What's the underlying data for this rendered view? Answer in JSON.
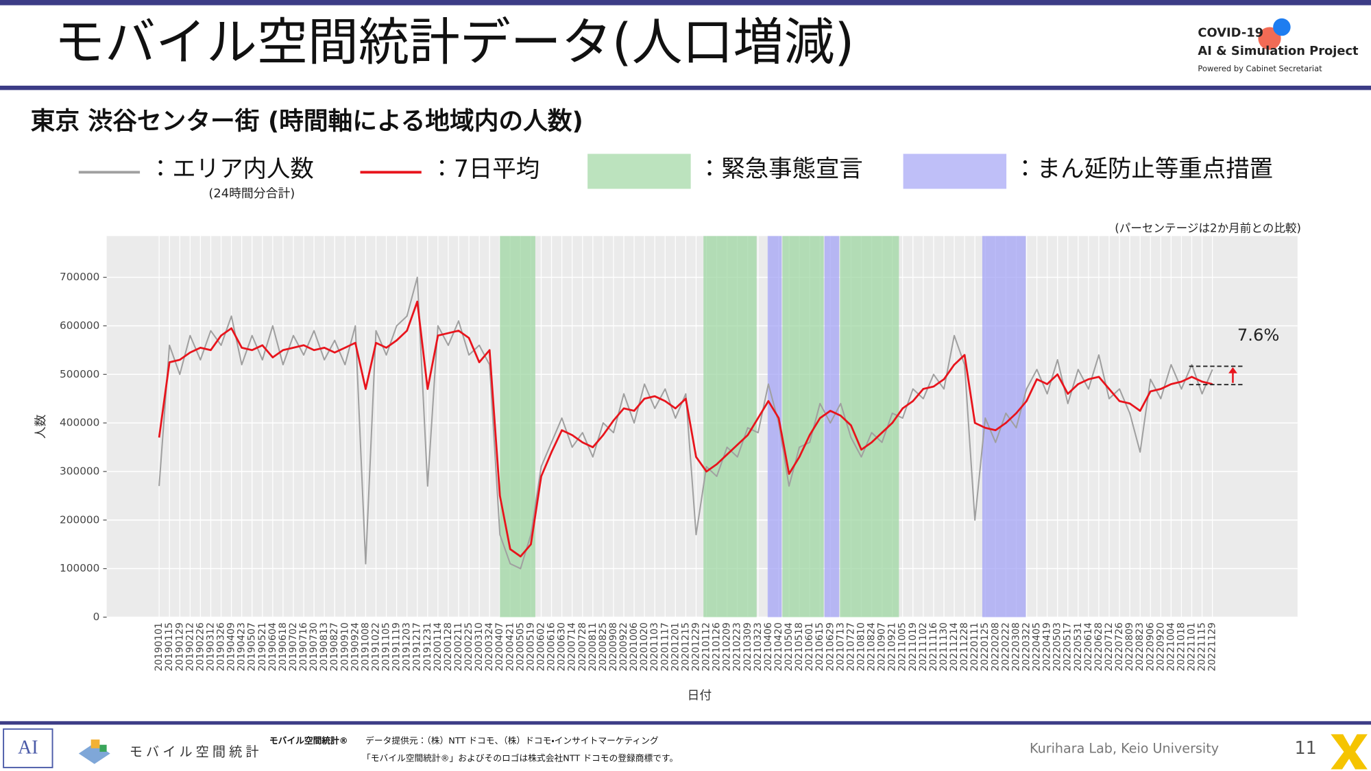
{
  "header": {
    "title": "モバイル空間統計データ(人口増減)",
    "logo_line1": "COVID-19",
    "logo_line2": "AI & Simulation Project",
    "logo_line3": "Powered by Cabinet Secretariat"
  },
  "chart_data": {
    "type": "line",
    "title": "東京 渋谷センター街 (時間軸による地域内の人数)",
    "subtitle": "(パーセンテージは2か月前との比較)",
    "x_label": "日付",
    "y_label": "人数",
    "annotation": "7.6%",
    "legend_note": "(24時間分合計)",
    "grid": true,
    "categories": [
      "20190101",
      "20190115",
      "20190129",
      "20190212",
      "20190226",
      "20190312",
      "20190326",
      "20190409",
      "20190423",
      "20190507",
      "20190521",
      "20190604",
      "20190618",
      "20190702",
      "20190716",
      "20190730",
      "20190813",
      "20190827",
      "20190910",
      "20190924",
      "20191008",
      "20191022",
      "20191105",
      "20191119",
      "20191203",
      "20191217",
      "20191231",
      "20200114",
      "20200128",
      "20200211",
      "20200225",
      "20200310",
      "20200324",
      "20200407",
      "20200421",
      "20200505",
      "20200519",
      "20200602",
      "20200616",
      "20200630",
      "20200714",
      "20200728",
      "20200811",
      "20200825",
      "20200908",
      "20200922",
      "20201006",
      "20201020",
      "20201103",
      "20201117",
      "20201201",
      "20201215",
      "20201229",
      "20210112",
      "20210126",
      "20210209",
      "20210223",
      "20210309",
      "20210323",
      "20210406",
      "20210420",
      "20210504",
      "20210518",
      "20210601",
      "20210615",
      "20210629",
      "20210713",
      "20210727",
      "20210810",
      "20210824",
      "20210907",
      "20210921",
      "20211005",
      "20211019",
      "20211102",
      "20211116",
      "20211130",
      "20211214",
      "20211228",
      "20220111",
      "20220125",
      "20220208",
      "20220222",
      "20220308",
      "20220322",
      "20220405",
      "20220419",
      "20220503",
      "20220517",
      "20220531",
      "20220614",
      "20220628",
      "20220712",
      "20220726",
      "20220809",
      "20220823",
      "20220906",
      "20220920",
      "20221004",
      "20221018",
      "20221101",
      "20221115",
      "20221129"
    ],
    "series": [
      {
        "name": "：エリア内人数",
        "color": "#a0a0a0",
        "values": [
          270000,
          560000,
          500000,
          580000,
          530000,
          590000,
          560000,
          620000,
          520000,
          580000,
          530000,
          600000,
          520000,
          580000,
          540000,
          590000,
          530000,
          570000,
          520000,
          600000,
          110000,
          590000,
          540000,
          600000,
          620000,
          700000,
          270000,
          600000,
          560000,
          610000,
          540000,
          560000,
          520000,
          170000,
          110000,
          100000,
          170000,
          310000,
          360000,
          410000,
          350000,
          380000,
          330000,
          400000,
          380000,
          460000,
          400000,
          480000,
          430000,
          470000,
          410000,
          460000,
          170000,
          310000,
          290000,
          350000,
          330000,
          390000,
          380000,
          480000,
          400000,
          270000,
          350000,
          360000,
          440000,
          400000,
          440000,
          370000,
          330000,
          380000,
          360000,
          420000,
          410000,
          470000,
          450000,
          500000,
          470000,
          580000,
          520000,
          200000,
          410000,
          360000,
          420000,
          390000,
          470000,
          510000,
          460000,
          530000,
          440000,
          510000,
          470000,
          540000,
          450000,
          470000,
          420000,
          340000,
          490000,
          450000,
          520000,
          470000,
          520000,
          460000,
          510000
        ]
      },
      {
        "name": "：7日平均",
        "color": "#e8141c",
        "values": [
          370000,
          525000,
          530000,
          545000,
          555000,
          550000,
          580000,
          595000,
          555000,
          550000,
          560000,
          535000,
          550000,
          555000,
          560000,
          550000,
          555000,
          545000,
          555000,
          565000,
          470000,
          565000,
          555000,
          570000,
          590000,
          650000,
          470000,
          580000,
          585000,
          590000,
          575000,
          525000,
          550000,
          250000,
          140000,
          125000,
          150000,
          290000,
          340000,
          385000,
          375000,
          360000,
          350000,
          375000,
          405000,
          430000,
          425000,
          450000,
          455000,
          445000,
          430000,
          450000,
          330000,
          300000,
          315000,
          335000,
          355000,
          375000,
          410000,
          445000,
          410000,
          295000,
          330000,
          375000,
          410000,
          425000,
          415000,
          395000,
          345000,
          360000,
          380000,
          400000,
          430000,
          445000,
          470000,
          475000,
          490000,
          520000,
          540000,
          400000,
          390000,
          385000,
          400000,
          420000,
          445000,
          490000,
          480000,
          500000,
          460000,
          480000,
          490000,
          495000,
          470000,
          445000,
          440000,
          425000,
          465000,
          470000,
          480000,
          485000,
          495000,
          485000,
          480000
        ]
      }
    ],
    "bands": [
      {
        "name": "：緊急事態宣言",
        "color": "#9fd7a3",
        "periods": [
          [
            "20200407",
            "20200525"
          ],
          [
            "20210108",
            "20210321"
          ],
          [
            "20210425",
            "20210620"
          ],
          [
            "20210712",
            "20210930"
          ]
        ]
      },
      {
        "name": "：まん延防止等重点措置",
        "color": "#a4a4f5",
        "periods": [
          [
            "20210405",
            "20210424"
          ],
          [
            "20210621",
            "20210711"
          ],
          [
            "20220121",
            "20220321"
          ]
        ]
      }
    ],
    "ylim": [
      0,
      785000
    ],
    "yticks": [
      0,
      100000,
      200000,
      300000,
      400000,
      500000,
      600000,
      700000
    ]
  },
  "footer": {
    "brand": "モバイル空間統計",
    "brand_small": "モバイル空間統計®",
    "source": "データ提供元：（株）NTT ドコモ、（株）ドコモ・インサイトマーケティング",
    "trademark": "「モバイル空間統計®」およびそのロゴは株式会社NTT ドコモの登録商標です。",
    "lab": "Kurihara Lab, Keio University",
    "page": "11",
    "lab_logo": "AI"
  }
}
